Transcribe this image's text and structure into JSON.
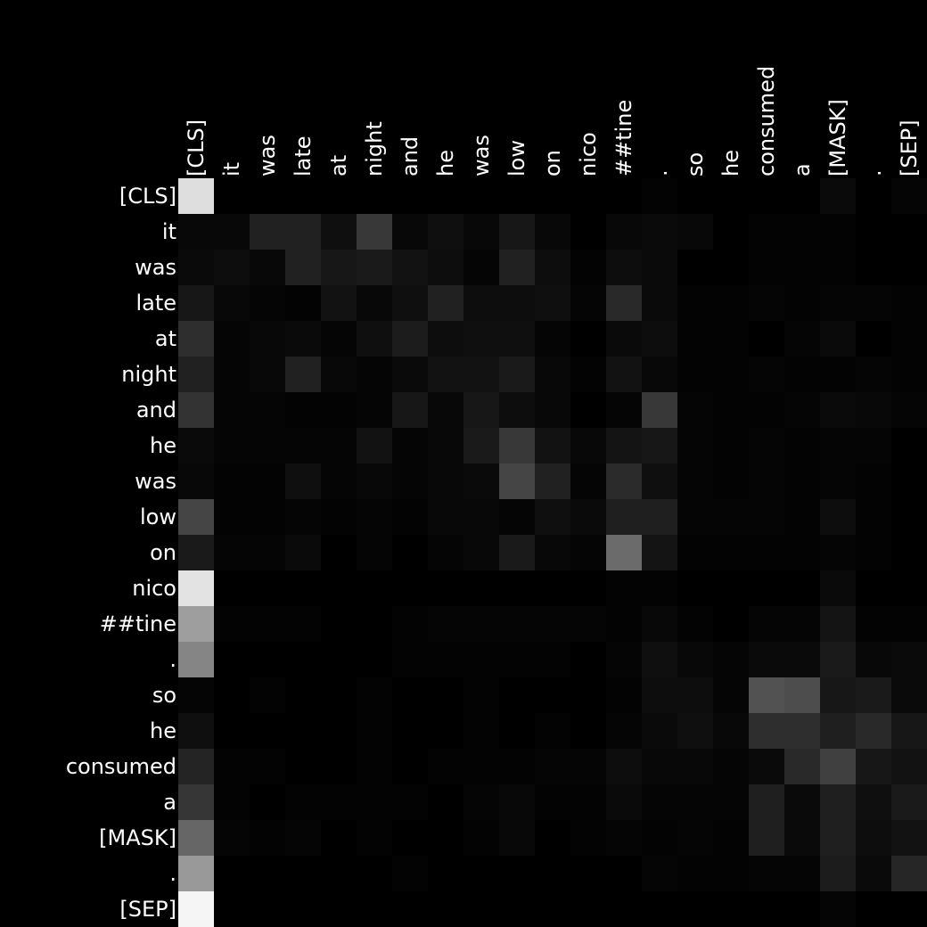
{
  "chart_data": {
    "type": "heatmap",
    "title": "",
    "xlabel": "",
    "ylabel": "",
    "colormap": "grayscale (black = low, white = high)",
    "legend": "none",
    "grid": false,
    "x_tokens": [
      "[CLS]",
      "it",
      "was",
      "late",
      "at",
      "night",
      "and",
      "he",
      "was",
      "low",
      "on",
      "nico",
      "##tine",
      ".",
      "so",
      "he",
      "consumed",
      "a",
      "[MASK]",
      ".",
      "[SEP]"
    ],
    "y_tokens": [
      "[CLS]",
      "it",
      "was",
      "late",
      "at",
      "night",
      "and",
      "he",
      "was",
      "low",
      "on",
      "nico",
      "##tine",
      ".",
      "so",
      "he",
      "consumed",
      "a",
      "[MASK]",
      ".",
      "[SEP]"
    ],
    "z": [
      [
        0.87,
        0.0,
        0.0,
        0.0,
        0.0,
        0.0,
        0.0,
        0.0,
        0.0,
        0.0,
        0.0,
        0.0,
        0.0,
        0.01,
        0.0,
        0.0,
        0.0,
        0.0,
        0.04,
        0.0,
        0.02
      ],
      [
        0.03,
        0.03,
        0.13,
        0.13,
        0.06,
        0.22,
        0.03,
        0.06,
        0.03,
        0.09,
        0.03,
        0.0,
        0.03,
        0.04,
        0.03,
        0.0,
        0.01,
        0.01,
        0.01,
        0.0,
        0.0
      ],
      [
        0.04,
        0.05,
        0.03,
        0.13,
        0.09,
        0.1,
        0.07,
        0.05,
        0.02,
        0.13,
        0.05,
        0.01,
        0.05,
        0.04,
        0.0,
        0.0,
        0.01,
        0.01,
        0.01,
        0.0,
        0.0
      ],
      [
        0.09,
        0.03,
        0.02,
        0.01,
        0.07,
        0.03,
        0.06,
        0.13,
        0.05,
        0.05,
        0.06,
        0.02,
        0.16,
        0.04,
        0.01,
        0.01,
        0.02,
        0.01,
        0.02,
        0.02,
        0.01
      ],
      [
        0.18,
        0.02,
        0.03,
        0.04,
        0.02,
        0.06,
        0.11,
        0.05,
        0.06,
        0.06,
        0.02,
        0.0,
        0.04,
        0.05,
        0.01,
        0.01,
        0.0,
        0.02,
        0.04,
        0.0,
        0.01
      ],
      [
        0.13,
        0.02,
        0.03,
        0.13,
        0.03,
        0.02,
        0.04,
        0.07,
        0.07,
        0.1,
        0.03,
        0.01,
        0.07,
        0.03,
        0.01,
        0.01,
        0.02,
        0.01,
        0.01,
        0.02,
        0.01
      ],
      [
        0.2,
        0.02,
        0.02,
        0.01,
        0.01,
        0.02,
        0.09,
        0.03,
        0.09,
        0.05,
        0.03,
        0.0,
        0.02,
        0.22,
        0.02,
        0.01,
        0.01,
        0.02,
        0.04,
        0.03,
        0.02
      ],
      [
        0.04,
        0.02,
        0.02,
        0.02,
        0.02,
        0.07,
        0.02,
        0.03,
        0.1,
        0.22,
        0.07,
        0.03,
        0.08,
        0.09,
        0.02,
        0.01,
        0.02,
        0.01,
        0.02,
        0.02,
        0.0
      ],
      [
        0.03,
        0.01,
        0.01,
        0.06,
        0.02,
        0.03,
        0.02,
        0.03,
        0.04,
        0.27,
        0.13,
        0.02,
        0.17,
        0.06,
        0.02,
        0.01,
        0.02,
        0.01,
        0.02,
        0.01,
        0.0
      ],
      [
        0.27,
        0.01,
        0.01,
        0.02,
        0.01,
        0.02,
        0.01,
        0.03,
        0.03,
        0.02,
        0.06,
        0.04,
        0.12,
        0.12,
        0.02,
        0.02,
        0.02,
        0.01,
        0.05,
        0.01,
        0.0
      ],
      [
        0.1,
        0.02,
        0.02,
        0.04,
        0.0,
        0.02,
        0.0,
        0.02,
        0.03,
        0.1,
        0.03,
        0.02,
        0.42,
        0.08,
        0.01,
        0.01,
        0.01,
        0.01,
        0.02,
        0.01,
        0.0
      ],
      [
        0.89,
        0.0,
        0.0,
        0.0,
        0.0,
        0.0,
        0.0,
        0.0,
        0.0,
        0.0,
        0.0,
        0.0,
        0.01,
        0.01,
        0.0,
        0.0,
        0.0,
        0.0,
        0.04,
        0.0,
        0.0
      ],
      [
        0.62,
        0.01,
        0.01,
        0.01,
        0.0,
        0.0,
        0.01,
        0.02,
        0.02,
        0.02,
        0.02,
        0.02,
        0.01,
        0.03,
        0.01,
        0.0,
        0.02,
        0.02,
        0.08,
        0.01,
        0.01
      ],
      [
        0.52,
        0.0,
        0.0,
        0.0,
        0.0,
        0.0,
        0.01,
        0.01,
        0.01,
        0.01,
        0.01,
        0.0,
        0.02,
        0.06,
        0.03,
        0.02,
        0.04,
        0.04,
        0.1,
        0.03,
        0.04
      ],
      [
        0.02,
        0.0,
        0.01,
        0.0,
        0.0,
        0.01,
        0.0,
        0.0,
        0.01,
        0.0,
        0.0,
        0.0,
        0.01,
        0.05,
        0.05,
        0.02,
        0.32,
        0.3,
        0.09,
        0.1,
        0.04
      ],
      [
        0.06,
        0.0,
        0.0,
        0.0,
        0.0,
        0.01,
        0.0,
        0.0,
        0.01,
        0.0,
        0.01,
        0.0,
        0.02,
        0.04,
        0.06,
        0.03,
        0.18,
        0.18,
        0.12,
        0.16,
        0.09
      ],
      [
        0.14,
        0.01,
        0.01,
        0.0,
        0.0,
        0.01,
        0.0,
        0.01,
        0.01,
        0.01,
        0.02,
        0.02,
        0.05,
        0.03,
        0.03,
        0.02,
        0.04,
        0.16,
        0.25,
        0.09,
        0.07
      ],
      [
        0.21,
        0.01,
        0.0,
        0.01,
        0.01,
        0.01,
        0.01,
        0.0,
        0.02,
        0.03,
        0.01,
        0.01,
        0.04,
        0.02,
        0.02,
        0.02,
        0.12,
        0.04,
        0.12,
        0.06,
        0.1
      ],
      [
        0.4,
        0.02,
        0.01,
        0.02,
        0.0,
        0.01,
        0.0,
        0.0,
        0.01,
        0.03,
        0.0,
        0.01,
        0.02,
        0.01,
        0.02,
        0.01,
        0.12,
        0.04,
        0.12,
        0.05,
        0.07
      ],
      [
        0.6,
        0.0,
        0.0,
        0.0,
        0.0,
        0.0,
        0.01,
        0.0,
        0.0,
        0.0,
        0.0,
        0.0,
        0.0,
        0.02,
        0.01,
        0.01,
        0.02,
        0.02,
        0.11,
        0.04,
        0.15
      ],
      [
        0.96,
        0.0,
        0.0,
        0.0,
        0.0,
        0.0,
        0.0,
        0.0,
        0.0,
        0.0,
        0.0,
        0.0,
        0.0,
        0.0,
        0.0,
        0.0,
        0.0,
        0.0,
        0.02,
        0.0,
        0.0
      ]
    ]
  }
}
